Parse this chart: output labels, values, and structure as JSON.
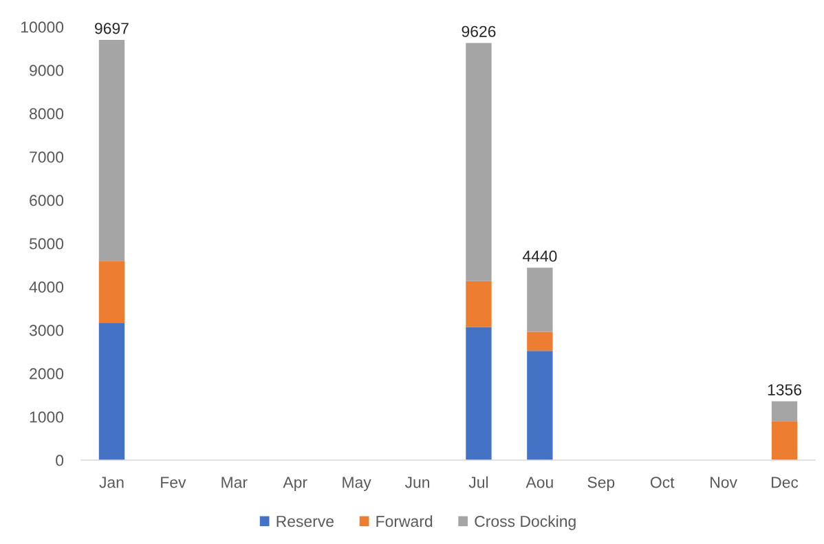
{
  "chart_data": {
    "type": "bar",
    "stacked": true,
    "categories": [
      "Jan",
      "Fev",
      "Mar",
      "Apr",
      "May",
      "Jun",
      "Jul",
      "Aou",
      "Sep",
      "Oct",
      "Nov",
      "Dec"
    ],
    "series": [
      {
        "name": "Reserve",
        "color": "#4472c4",
        "values": [
          3170,
          null,
          null,
          null,
          null,
          null,
          3070,
          2520,
          null,
          null,
          null,
          null
        ]
      },
      {
        "name": "Forward",
        "color": "#ed7d31",
        "values": [
          1430,
          null,
          null,
          null,
          null,
          null,
          1060,
          440,
          null,
          null,
          null,
          900
        ]
      },
      {
        "name": "Cross Docking",
        "color": "#a5a5a5",
        "values": [
          5097,
          null,
          null,
          null,
          null,
          null,
          5496,
          1480,
          null,
          null,
          null,
          456
        ]
      }
    ],
    "totals": [
      "9697",
      null,
      null,
      null,
      null,
      null,
      "9626",
      "4440",
      null,
      null,
      null,
      "1356"
    ],
    "ylim": [
      0,
      10000
    ],
    "yticks": [
      0,
      1000,
      2000,
      3000,
      4000,
      5000,
      6000,
      7000,
      8000,
      9000,
      10000
    ],
    "grid": false,
    "legend": "bottom"
  }
}
